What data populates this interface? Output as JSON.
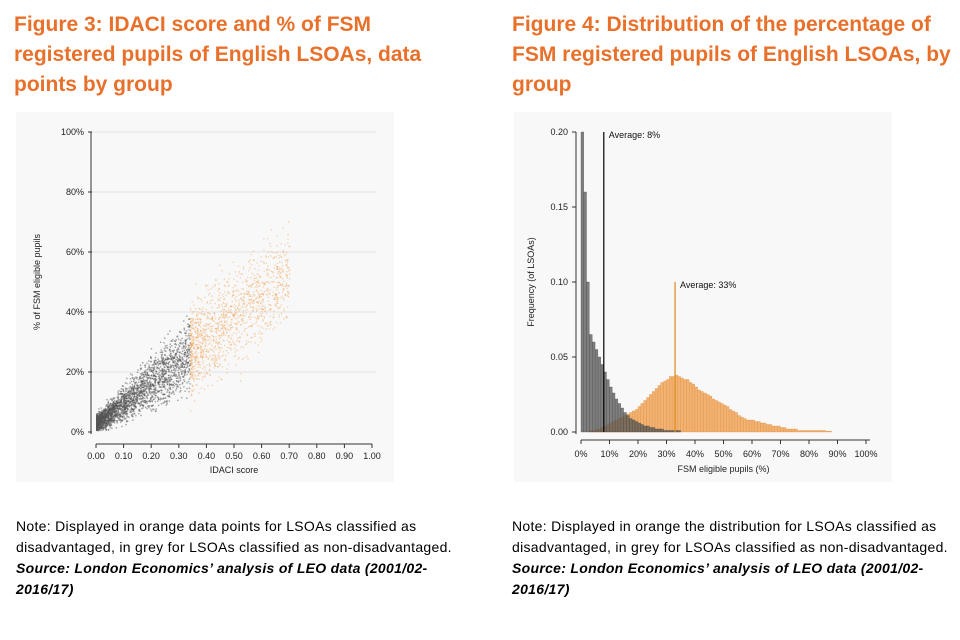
{
  "figure3": {
    "title": "Figure 3: IDACI score and % of FSM registered pupils of English LSOAs, data points by group",
    "note": "Note: Displayed in orange data points for LSOAs classified as disadvantaged, in grey for LSOAs classified as non-disadvantaged.",
    "source": "Source: London Economics’ analysis of LEO data (2001/02-2016/17)"
  },
  "figure4": {
    "title": "Figure 4: Distribution of the percentage of FSM registered pupils of English LSOAs, by group",
    "note": "Note: Displayed in orange the distribution for LSOAs classified as disadvantaged, in grey for LSOAs classified as non-disadvantaged.",
    "source": "Source: London Economics’ analysis of LEO data (2001/02-2016/17)"
  },
  "colors": {
    "orange": "#f0a050",
    "grey": "#555555",
    "orange_line": "#d98a1a",
    "black_line": "#000000"
  },
  "chart_data": [
    {
      "type": "scatter",
      "title": "Figure 3: IDACI score and % of FSM registered pupils of English LSOAs, data points by group",
      "xlabel": "IDACI score",
      "ylabel": "% of FSM eligible pupils",
      "xlim": [
        0,
        1
      ],
      "ylim": [
        0,
        100
      ],
      "x_ticks": [
        0,
        0.1,
        0.2,
        0.3,
        0.4,
        0.5,
        0.6,
        0.7,
        0.8,
        0.9,
        1.0
      ],
      "x_tick_labels": [
        "0.00",
        "0.10",
        "0.20",
        "0.30",
        "0.40",
        "0.50",
        "0.60",
        "0.70",
        "0.80",
        "0.90",
        "1.00"
      ],
      "y_ticks": [
        0,
        20,
        40,
        60,
        80,
        100
      ],
      "y_tick_labels": [
        "0%",
        "20%",
        "40%",
        "60%",
        "80%",
        "100%"
      ],
      "grid": true,
      "series": [
        {
          "name": "non-disadvantaged",
          "color": "grey",
          "x_range": [
            0,
            0.34
          ],
          "approx_trend": "y ≈ 4 + 70x",
          "density": "very high near origin"
        },
        {
          "name": "disadvantaged",
          "color": "orange",
          "x_range": [
            0.34,
            0.7
          ],
          "approx_trend": "y ≈ 4 + 70x",
          "density": "moderate"
        }
      ]
    },
    {
      "type": "bar",
      "title": "Figure 4: Distribution of the percentage of FSM registered pupils of English LSOAs, by group",
      "xlabel": "FSM eligible pupils (%)",
      "ylabel": "Frequency (of LSOAs)",
      "xlim": [
        0,
        100
      ],
      "ylim": [
        0,
        0.2
      ],
      "x_ticks": [
        0,
        10,
        20,
        30,
        40,
        50,
        60,
        70,
        80,
        90,
        100
      ],
      "x_tick_labels": [
        "0%",
        "10%",
        "20%",
        "30%",
        "40%",
        "50%",
        "60%",
        "70%",
        "80%",
        "90%",
        "100%"
      ],
      "y_ticks": [
        0,
        0.05,
        0.1,
        0.15,
        0.2
      ],
      "y_tick_labels": [
        "0.00",
        "0.05",
        "0.10",
        "0.15",
        "0.20"
      ],
      "bin_width": 1,
      "series": [
        {
          "name": "non-disadvantaged",
          "color": "grey",
          "bins_start": 0,
          "values": [
            0.2,
            0.16,
            0.1,
            0.065,
            0.06,
            0.055,
            0.05,
            0.045,
            0.04,
            0.035,
            0.03,
            0.026,
            0.022,
            0.019,
            0.016,
            0.013,
            0.011,
            0.009,
            0.008,
            0.007,
            0.006,
            0.005,
            0.004,
            0.004,
            0.003,
            0.003,
            0.002,
            0.002,
            0.002,
            0.001,
            0.001,
            0.001,
            0.001,
            0.001,
            0.001
          ]
        },
        {
          "name": "disadvantaged",
          "color": "orange",
          "bins_start": 0,
          "values": [
            0,
            0,
            0,
            0.001,
            0.001,
            0.002,
            0.002,
            0.003,
            0.004,
            0.005,
            0.006,
            0.007,
            0.008,
            0.009,
            0.01,
            0.011,
            0.012,
            0.013,
            0.014,
            0.015,
            0.017,
            0.019,
            0.021,
            0.023,
            0.025,
            0.027,
            0.029,
            0.031,
            0.033,
            0.034,
            0.035,
            0.037,
            0.037,
            0.038,
            0.037,
            0.036,
            0.035,
            0.035,
            0.033,
            0.032,
            0.03,
            0.028,
            0.027,
            0.026,
            0.025,
            0.024,
            0.022,
            0.021,
            0.02,
            0.019,
            0.018,
            0.017,
            0.015,
            0.014,
            0.013,
            0.011,
            0.01,
            0.009,
            0.008,
            0.008,
            0.008,
            0.007,
            0.007,
            0.006,
            0.006,
            0.005,
            0.005,
            0.004,
            0.004,
            0.004,
            0.003,
            0.003,
            0.002,
            0.002,
            0.002,
            0.002,
            0.001,
            0.001,
            0.001,
            0.001,
            0.001,
            0.001,
            0.001,
            0.001,
            0.001,
            0.001,
            0.0005,
            0.0005
          ]
        }
      ],
      "averages": [
        {
          "label": "Average: 8%",
          "value": 8,
          "color": "black_line",
          "line_top": 0.2
        },
        {
          "label": "Average: 33%",
          "value": 33,
          "color": "orange_line",
          "line_top": 0.1
        }
      ]
    }
  ]
}
